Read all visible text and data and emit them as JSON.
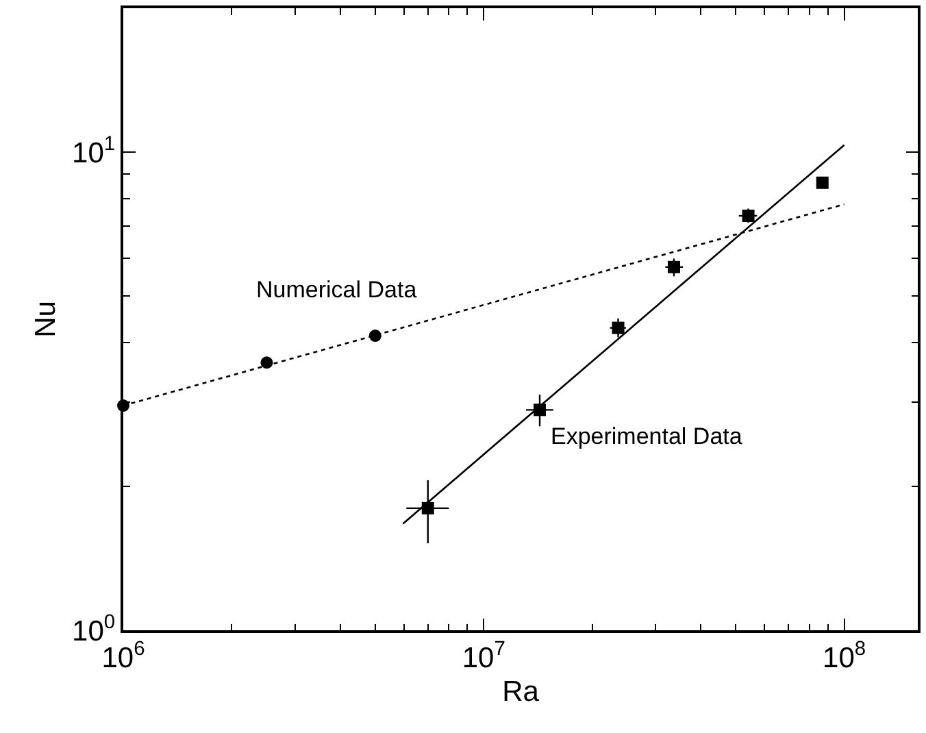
{
  "chart_data": {
    "type": "scatter",
    "xlabel": "Ra",
    "ylabel": "Nu",
    "log": "xy",
    "xlim": [
      1000000,
      160000000
    ],
    "ylim": [
      1,
      20
    ],
    "xticks": [
      {
        "value": 1000000,
        "label": "10$^{6}$"
      },
      {
        "value": 10000000,
        "label": "10$^{7}$"
      },
      {
        "value": 100000000,
        "label": "10$^{8}$"
      }
    ],
    "yticks": [
      {
        "value": 1,
        "label": "10$^{0}$"
      },
      {
        "value": 10,
        "label": "10$^{1}$"
      }
    ],
    "series": [
      {
        "marker": "circle",
        "color": "#000000",
        "x": [
          1000000,
          2500000,
          5000000
        ],
        "values": [
          2.95,
          3.63,
          4.13
        ]
      },
      {
        "type": "line",
        "line_style": "dotted",
        "marker": "none",
        "color": "#000000",
        "x": [
          1000000,
          100000000
        ],
        "values": [
          2.95,
          7.78
        ]
      },
      {
        "marker": "square",
        "color": "#000000",
        "x": [
          7000000,
          14300000,
          23600000,
          33700000,
          54200000,
          87000000
        ],
        "values": [
          1.8,
          2.89,
          4.29,
          5.75,
          7.36,
          8.63
        ],
        "errors": [
          [
            1.52,
            2.06
          ],
          [
            2.67,
            3.11
          ],
          [
            4.1,
            4.49
          ],
          [
            5.5,
            5.99
          ],
          [
            7.12,
            7.62
          ],
          null
        ],
        "xerrors": [
          [
            6100000,
            8000000
          ],
          [
            13100000,
            15600000
          ],
          [
            22400000,
            24800000
          ],
          [
            31900000,
            35700000
          ],
          [
            51000000,
            57300000
          ],
          null
        ]
      },
      {
        "type": "line",
        "line_style": "solid",
        "marker": "none",
        "color": "#000000",
        "x": [
          5970000,
          100000000
        ],
        "values": [
          1.67,
          10.35
        ]
      }
    ],
    "annotations": [
      "Numerical Data",
      "Experimental Data"
    ]
  }
}
